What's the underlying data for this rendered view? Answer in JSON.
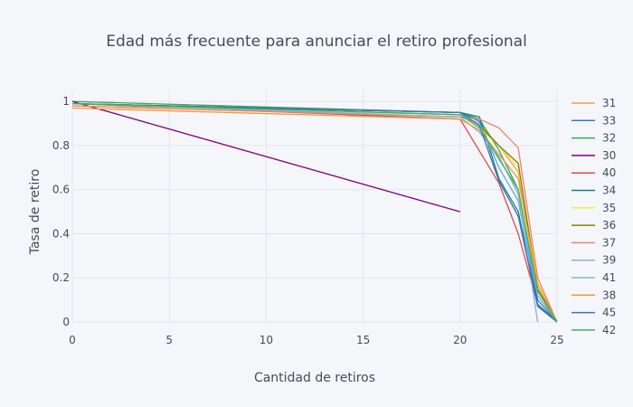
{
  "chart_data": {
    "type": "line",
    "title": "Edad más frecuente para anunciar el retiro profesional",
    "xlabel": "Cantidad de retiros",
    "ylabel": "Tasa de retiro",
    "xlim": [
      0,
      25
    ],
    "ylim": [
      0,
      1.05
    ],
    "xticks": [
      "0",
      "5",
      "10",
      "15",
      "20",
      "25"
    ],
    "yticks": [
      "0",
      "0.2",
      "0.4",
      "0.6",
      "0.8",
      "1"
    ],
    "grid": true,
    "legend_position": "right",
    "series": [
      {
        "name": "31",
        "color": "#f0a050",
        "points": [
          [
            0,
            0.98
          ],
          [
            20,
            0.93
          ],
          [
            21,
            0.9
          ],
          [
            22,
            0.8
          ],
          [
            23,
            0.68
          ],
          [
            24,
            0.15
          ],
          [
            25,
            0
          ]
        ]
      },
      {
        "name": "33",
        "color": "#3a78c8",
        "points": [
          [
            0,
            0.99
          ],
          [
            20,
            0.95
          ],
          [
            21,
            0.91
          ],
          [
            22,
            0.7
          ],
          [
            23,
            0.55
          ],
          [
            24,
            0.1
          ],
          [
            25,
            0
          ]
        ]
      },
      {
        "name": "32",
        "color": "#3aaa5a",
        "points": [
          [
            0,
            1.0
          ],
          [
            20,
            0.95
          ],
          [
            21,
            0.92
          ],
          [
            22,
            0.78
          ],
          [
            23,
            0.6
          ],
          [
            24,
            0.12
          ],
          [
            25,
            0
          ]
        ]
      },
      {
        "name": "30",
        "color": "#800080",
        "points": [
          [
            0,
            1.0
          ],
          [
            20,
            0.5
          ]
        ]
      },
      {
        "name": "40",
        "color": "#e04848",
        "points": [
          [
            0,
            0.99
          ],
          [
            20,
            0.92
          ],
          [
            22,
            0.63
          ],
          [
            23,
            0.4
          ],
          [
            24,
            0.08
          ],
          [
            25,
            0
          ]
        ]
      },
      {
        "name": "34",
        "color": "#128080",
        "points": [
          [
            0,
            0.99
          ],
          [
            20,
            0.95
          ],
          [
            21,
            0.93
          ],
          [
            22,
            0.65
          ],
          [
            23,
            0.5
          ],
          [
            24,
            0.08
          ],
          [
            25,
            0
          ]
        ]
      },
      {
        "name": "35",
        "color": "#f0f040",
        "points": [
          [
            0,
            0.98
          ],
          [
            20,
            0.94
          ],
          [
            21,
            0.88
          ],
          [
            22,
            0.8
          ],
          [
            23,
            0.7
          ],
          [
            24,
            0.18
          ],
          [
            25,
            0
          ]
        ]
      },
      {
        "name": "36",
        "color": "#808000",
        "points": [
          [
            0,
            0.99
          ],
          [
            20,
            0.95
          ],
          [
            21,
            0.89
          ],
          [
            22,
            0.8
          ],
          [
            23,
            0.72
          ],
          [
            24,
            0.15
          ],
          [
            25,
            0
          ]
        ]
      },
      {
        "name": "37",
        "color": "#f08070",
        "points": [
          [
            0,
            0.98
          ],
          [
            20,
            0.93
          ],
          [
            21,
            0.92
          ],
          [
            22,
            0.88
          ],
          [
            23,
            0.79
          ],
          [
            24,
            0.2
          ],
          [
            25,
            0
          ]
        ]
      },
      {
        "name": "39",
        "color": "#88b0d8",
        "points": [
          [
            0,
            0.99
          ],
          [
            20,
            0.93
          ],
          [
            21,
            0.86
          ],
          [
            22,
            0.75
          ],
          [
            23,
            0.58
          ],
          [
            24,
            0
          ]
        ]
      },
      {
        "name": "41",
        "color": "#7ab8d0",
        "points": [
          [
            0,
            0.99
          ],
          [
            20,
            0.94
          ],
          [
            21,
            0.9
          ],
          [
            22,
            0.7
          ],
          [
            23,
            0.55
          ],
          [
            24,
            0.12
          ],
          [
            25,
            0
          ]
        ]
      },
      {
        "name": "38",
        "color": "#f09838",
        "points": [
          [
            0,
            0.97
          ],
          [
            20,
            0.92
          ],
          [
            21,
            0.87
          ],
          [
            22,
            0.76
          ],
          [
            23,
            0.65
          ],
          [
            24,
            0.17
          ],
          [
            25,
            0
          ]
        ]
      },
      {
        "name": "45",
        "color": "#4070c0",
        "points": [
          [
            0,
            0.99
          ],
          [
            20,
            0.95
          ],
          [
            21,
            0.89
          ],
          [
            22,
            0.64
          ],
          [
            23,
            0.48
          ],
          [
            24,
            0.07
          ],
          [
            25,
            0
          ]
        ]
      },
      {
        "name": "42",
        "color": "#40b060",
        "points": [
          [
            0,
            0.99
          ],
          [
            20,
            0.94
          ],
          [
            21,
            0.88
          ],
          [
            22,
            0.74
          ],
          [
            23,
            0.6
          ],
          [
            24,
            0.14
          ],
          [
            25,
            0
          ]
        ]
      }
    ]
  }
}
